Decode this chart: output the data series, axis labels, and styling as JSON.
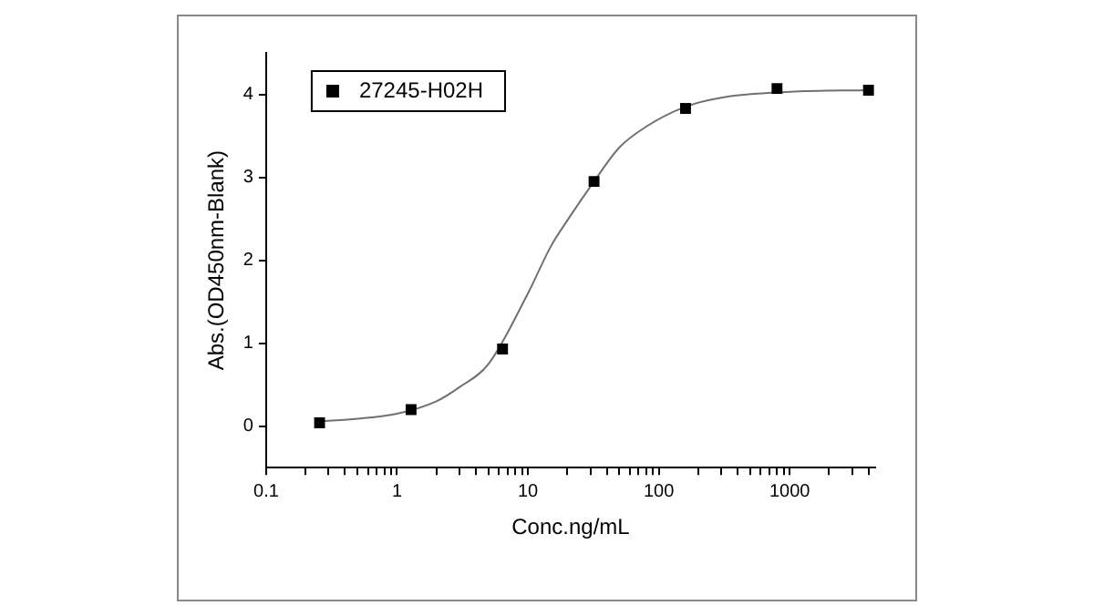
{
  "chart_data": {
    "type": "scatter",
    "xlabel": "Conc.ng/mL",
    "ylabel": "Abs.(OD450nm-Blank)",
    "log": "x",
    "xlim": [
      0.1,
      4500
    ],
    "ylim": [
      -0.5,
      4.5
    ],
    "grid": false,
    "legend": "top left",
    "marker": "square",
    "xticks": [
      {
        "value": 0.1,
        "label": "0.1"
      },
      {
        "value": 0.2,
        "label": null
      },
      {
        "value": 0.3,
        "label": null
      },
      {
        "value": 0.4,
        "label": null
      },
      {
        "value": 0.5,
        "label": null
      },
      {
        "value": 0.6,
        "label": null
      },
      {
        "value": 0.7,
        "label": null
      },
      {
        "value": 0.8,
        "label": null
      },
      {
        "value": 0.9,
        "label": null
      },
      1,
      {
        "value": 2,
        "label": null
      },
      {
        "value": 3,
        "label": null
      },
      {
        "value": 4,
        "label": null
      },
      {
        "value": 5,
        "label": null
      },
      {
        "value": 6,
        "label": null
      },
      {
        "value": 7,
        "label": null
      },
      {
        "value": 8,
        "label": null
      },
      {
        "value": 9,
        "label": null
      },
      10,
      {
        "value": 20,
        "label": null
      },
      {
        "value": 30,
        "label": null
      },
      {
        "value": 40,
        "label": null
      },
      {
        "value": 50,
        "label": null
      },
      {
        "value": 60,
        "label": null
      },
      {
        "value": 70,
        "label": null
      },
      {
        "value": 80,
        "label": null
      },
      {
        "value": 90,
        "label": null
      },
      100,
      {
        "value": 200,
        "label": null
      },
      {
        "value": 300,
        "label": null
      },
      {
        "value": 400,
        "label": null
      },
      {
        "value": 500,
        "label": null
      },
      {
        "value": 600,
        "label": null
      },
      {
        "value": 700,
        "label": null
      },
      {
        "value": 800,
        "label": null
      },
      {
        "value": 900,
        "label": null
      },
      1000,
      {
        "value": 2000,
        "label": null
      },
      {
        "value": 3000,
        "label": null
      },
      {
        "value": 4000,
        "label": null
      }
    ],
    "yticks": [
      0,
      1,
      2,
      3,
      4
    ],
    "series": [
      {
        "name": "27245-H02H",
        "color": "#000000",
        "x": [
          0.256,
          1.28,
          6.4,
          32,
          160,
          800,
          4000
        ],
        "values": [
          0.04,
          0.2,
          0.93,
          2.95,
          3.83,
          4.07,
          4.05
        ]
      },
      {
        "type": "line",
        "color": "#707070",
        "marker": "none",
        "x": [
          0.256,
          0.5,
          1,
          2,
          3,
          5,
          10,
          15,
          20,
          32,
          50,
          80,
          160,
          300,
          1000,
          4000
        ],
        "values": [
          0.06,
          0.09,
          0.15,
          0.3,
          0.47,
          0.75,
          1.6,
          2.17,
          2.48,
          2.95,
          3.36,
          3.61,
          3.85,
          3.96,
          4.03,
          4.05
        ]
      }
    ]
  }
}
